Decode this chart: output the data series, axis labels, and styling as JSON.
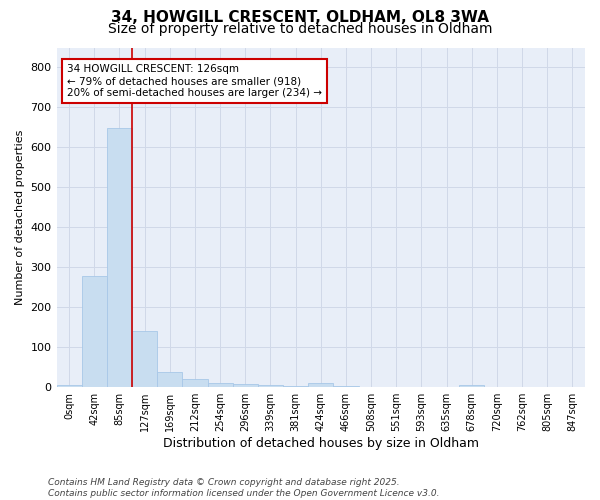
{
  "title1": "34, HOWGILL CRESCENT, OLDHAM, OL8 3WA",
  "title2": "Size of property relative to detached houses in Oldham",
  "xlabel": "Distribution of detached houses by size in Oldham",
  "ylabel": "Number of detached properties",
  "bar_labels": [
    "0sqm",
    "42sqm",
    "85sqm",
    "127sqm",
    "169sqm",
    "212sqm",
    "254sqm",
    "296sqm",
    "339sqm",
    "381sqm",
    "424sqm",
    "466sqm",
    "508sqm",
    "551sqm",
    "593sqm",
    "635sqm",
    "678sqm",
    "720sqm",
    "762sqm",
    "805sqm",
    "847sqm"
  ],
  "bar_values": [
    5,
    278,
    648,
    140,
    38,
    20,
    10,
    8,
    5,
    3,
    10,
    2,
    0,
    0,
    0,
    0,
    5,
    0,
    0,
    0,
    0
  ],
  "bar_color": "#c8ddf0",
  "bar_edgecolor": "#a8c8e8",
  "highlight_index": 3,
  "highlight_color": "#cc0000",
  "annotation_text": "34 HOWGILL CRESCENT: 126sqm\n← 79% of detached houses are smaller (918)\n20% of semi-detached houses are larger (234) →",
  "annotation_boxcolor": "white",
  "annotation_edgecolor": "#cc0000",
  "ylim": [
    0,
    850
  ],
  "yticks": [
    0,
    100,
    200,
    300,
    400,
    500,
    600,
    700,
    800
  ],
  "grid_color": "#d0d8e8",
  "background_color": "#ffffff",
  "plot_bg_color": "#e8eef8",
  "footnote": "Contains HM Land Registry data © Crown copyright and database right 2025.\nContains public sector information licensed under the Open Government Licence v3.0.",
  "title_fontsize": 11,
  "subtitle_fontsize": 10,
  "xlabel_fontsize": 9,
  "ylabel_fontsize": 8,
  "tick_fontsize": 7,
  "annot_fontsize": 7.5,
  "footnote_fontsize": 6.5
}
